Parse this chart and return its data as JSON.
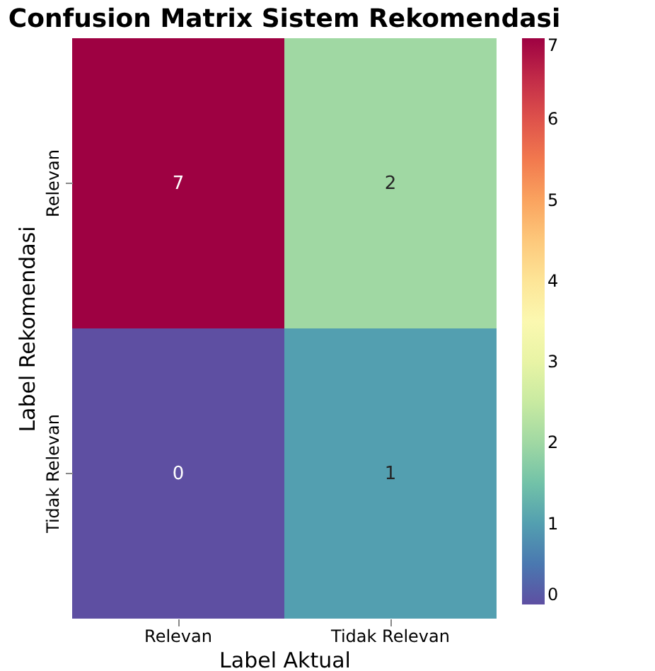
{
  "chart_data": {
    "type": "heatmap",
    "title": "Confusion Matrix Sistem Rekomendasi",
    "xlabel": "Label Aktual",
    "ylabel": "Label Rekomendasi",
    "categories": [
      "Relevan",
      "Tidak Relevan"
    ],
    "y_categories": [
      "Relevan",
      "Tidak Relevan"
    ],
    "cells": [
      [
        7,
        2
      ],
      [
        0,
        1
      ]
    ],
    "data_labels": true,
    "clim": [
      0,
      7
    ],
    "cticks": [
      0,
      1,
      2,
      3,
      4,
      5,
      6,
      7
    ]
  }
}
